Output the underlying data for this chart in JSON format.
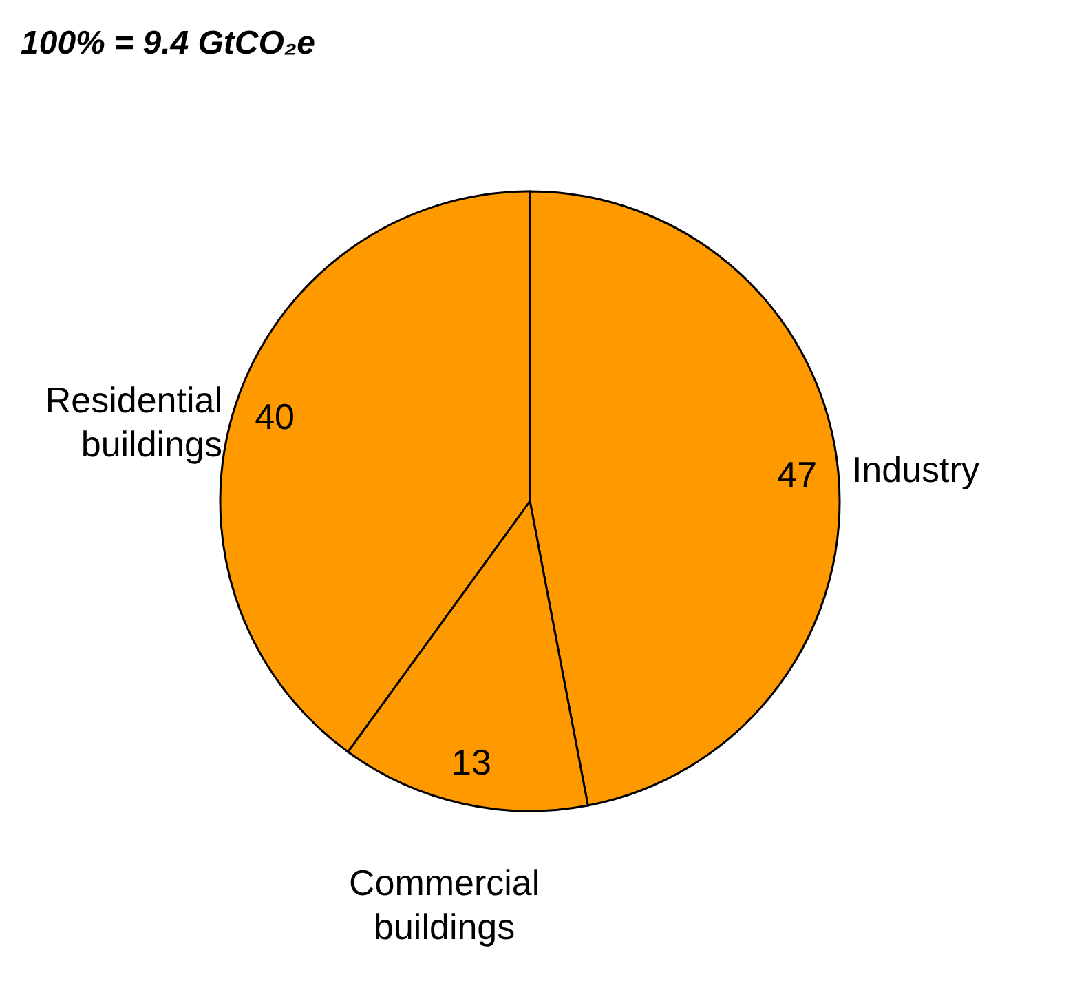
{
  "chart_data": {
    "type": "pie",
    "title": "100% = 9.4 GtCO₂e",
    "categories": [
      "Industry",
      "Commercial buildings",
      "Residential buildings"
    ],
    "values": [
      47,
      13,
      40
    ],
    "colors": [
      "#ff9900",
      "#ff9900",
      "#ff9900"
    ],
    "data_labels": true,
    "legend": false
  }
}
